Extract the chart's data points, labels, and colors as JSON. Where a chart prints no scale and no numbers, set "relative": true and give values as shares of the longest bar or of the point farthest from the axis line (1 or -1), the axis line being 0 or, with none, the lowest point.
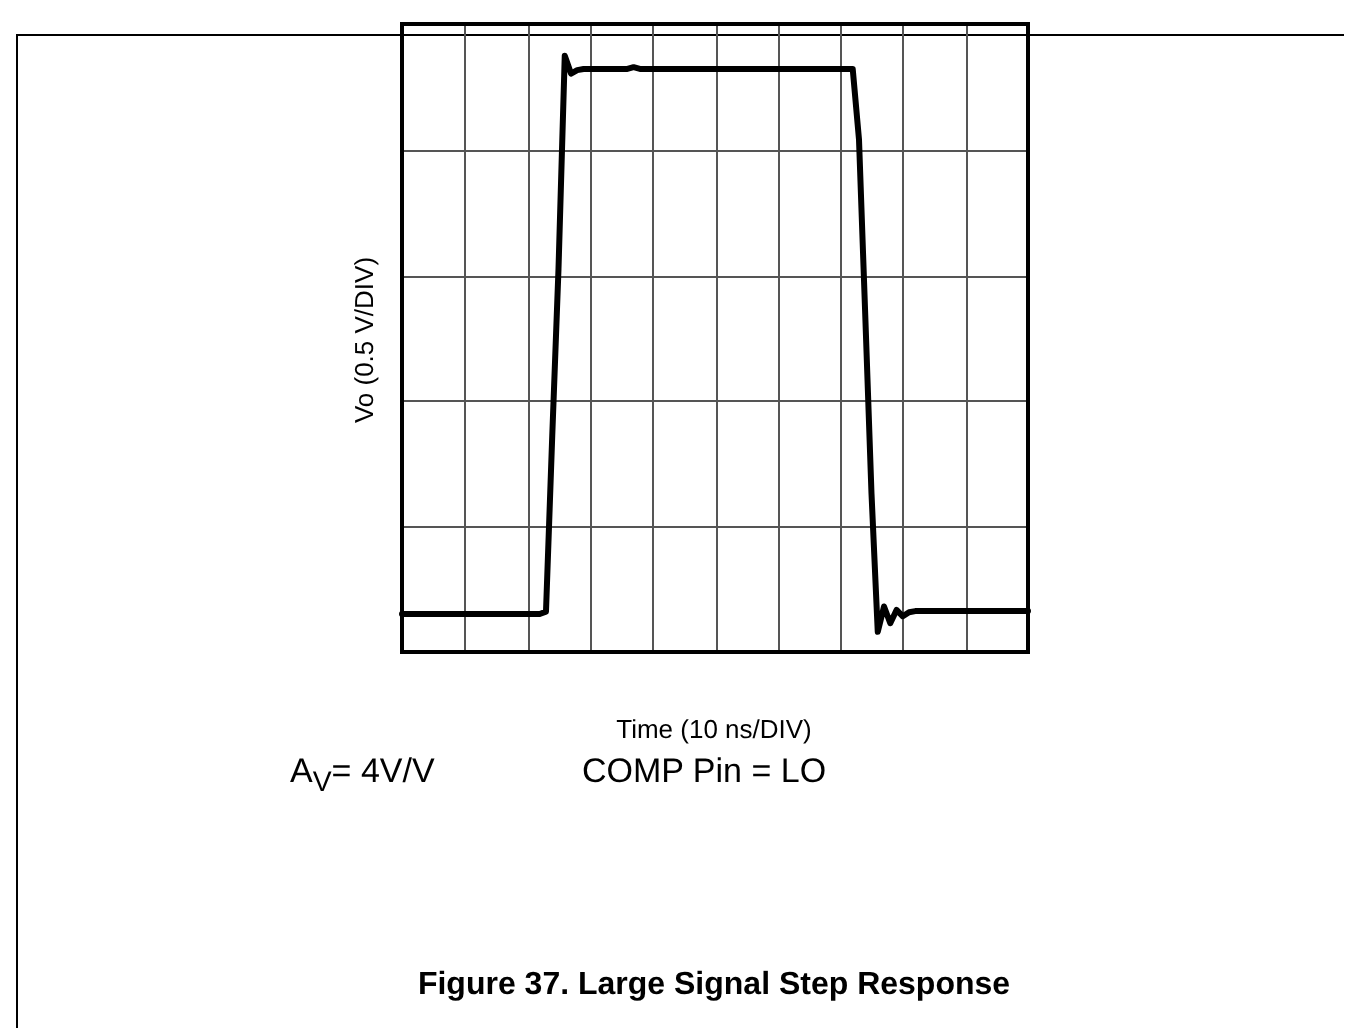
{
  "chart_data": {
    "type": "line",
    "relative": true,
    "title": "Figure 37. Large Signal Step Response",
    "xlabel": "Time (10 ns/DIV)",
    "ylabel": "Vo (0.5 V/DIV)",
    "annotations": [
      "A$_{V}$= 4V/V",
      "COMP Pin = LO"
    ],
    "grid": true,
    "legend": false,
    "marker": "none",
    "line_style": "solid",
    "categories": [
      null,
      null,
      null,
      null,
      null,
      null,
      null,
      null,
      null,
      null,
      null,
      null,
      null,
      null,
      null,
      null,
      null,
      null,
      null,
      null,
      null,
      null,
      null,
      null,
      null,
      null,
      null,
      null,
      null,
      null,
      null,
      null,
      null,
      null,
      null,
      null,
      null,
      null,
      null,
      null,
      null,
      null,
      null,
      null,
      null,
      null,
      null,
      null,
      null,
      null,
      null,
      null,
      null,
      null,
      null,
      null,
      null,
      null,
      null,
      null,
      null,
      null,
      null,
      null,
      null,
      null,
      null,
      null,
      null,
      null,
      null,
      null,
      null,
      null,
      null,
      null,
      null,
      null,
      null,
      null,
      null,
      null,
      null,
      null,
      null,
      null,
      null,
      null,
      null,
      null,
      null,
      null,
      null,
      null,
      null,
      null,
      null,
      null,
      null,
      null,
      null
    ],
    "series": [
      {
        "color": "#000000",
        "values": [
          0.031,
          0.031,
          0.031,
          0.031,
          0.031,
          0.031,
          0.031,
          0.031,
          0.031,
          0.031,
          0.031,
          0.031,
          0.031,
          0.031,
          0.031,
          0.031,
          0.031,
          0.031,
          0.031,
          0.031,
          0.031,
          0.031,
          0.031,
          0.035,
          0.34,
          0.63,
          1.0,
          0.969,
          0.975,
          0.977,
          0.977,
          0.977,
          0.977,
          0.977,
          0.977,
          0.977,
          0.977,
          0.98,
          0.977,
          0.977,
          0.977,
          0.977,
          0.977,
          0.977,
          0.977,
          0.977,
          0.977,
          0.977,
          0.977,
          0.977,
          0.977,
          0.977,
          0.977,
          0.977,
          0.977,
          0.977,
          0.977,
          0.977,
          0.977,
          0.977,
          0.977,
          0.977,
          0.977,
          0.977,
          0.977,
          0.977,
          0.977,
          0.977,
          0.977,
          0.977,
          0.977,
          0.977,
          0.977,
          0.855,
          0.55,
          0.24,
          0.0,
          0.044,
          0.015,
          0.038,
          0.027,
          0.034,
          0.036,
          0.036,
          0.036,
          0.036,
          0.036,
          0.036,
          0.036,
          0.036,
          0.036,
          0.036,
          0.036,
          0.036,
          0.036,
          0.036,
          0.036,
          0.036,
          0.036,
          0.036,
          0.036
        ]
      }
    ]
  }
}
